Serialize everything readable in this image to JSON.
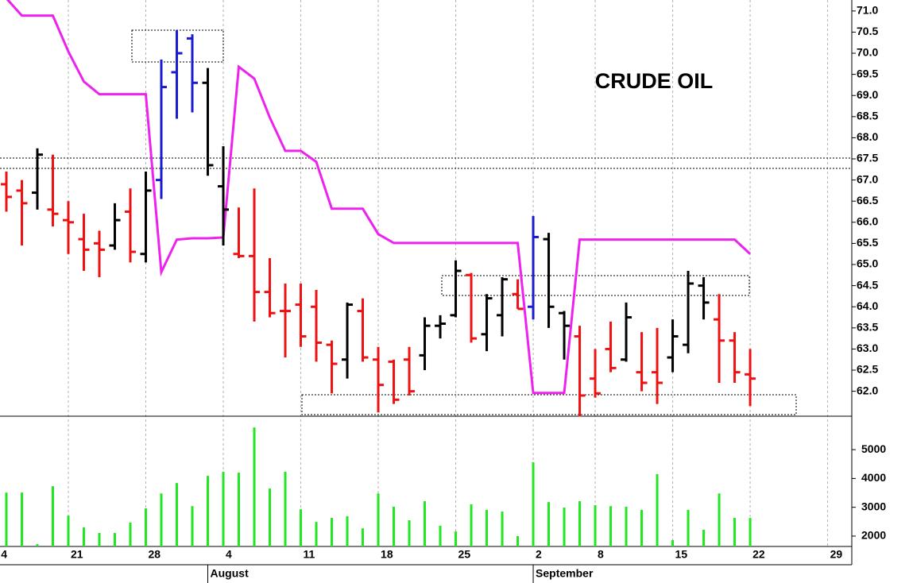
{
  "chart_data": {
    "type": "ohlc",
    "title": "CRUDE OIL",
    "open": [
      66.9,
      66.75,
      66.7,
      66.3,
      66.05,
      65.6,
      65.5,
      65.45,
      66.25,
      65.25,
      67.0,
      69.55,
      70.35,
      69.3,
      66.85,
      65.25,
      65.2,
      64.35,
      63.9,
      64.05,
      64.0,
      63.1,
      62.75,
      63.9,
      62.75,
      62.7,
      62.75,
      62.85,
      63.55,
      63.8,
      64.75,
      63.35,
      63.8,
      64.3,
      64.0,
      65.6,
      63.85,
      63.3,
      62.3,
      63.0,
      62.75,
      62.45,
      62.45,
      62.8,
      63.1,
      64.5,
      63.7,
      63.2,
      62.4
    ],
    "high": [
      67.2,
      67.0,
      67.75,
      67.6,
      66.5,
      66.2,
      65.8,
      66.45,
      66.8,
      67.2,
      69.85,
      70.55,
      70.45,
      69.65,
      67.8,
      66.35,
      66.8,
      65.15,
      64.55,
      64.55,
      64.4,
      63.2,
      64.1,
      64.2,
      63.05,
      62.75,
      63.05,
      63.75,
      63.8,
      65.1,
      64.8,
      64.3,
      64.7,
      64.65,
      66.15,
      65.75,
      63.9,
      63.55,
      63.0,
      63.65,
      64.1,
      63.4,
      63.5,
      63.7,
      64.85,
      64.7,
      64.3,
      63.4,
      63.0
    ],
    "low": [
      66.25,
      65.45,
      66.3,
      65.9,
      65.25,
      64.85,
      64.7,
      65.35,
      65.05,
      65.05,
      66.55,
      68.45,
      68.6,
      67.1,
      65.45,
      65.15,
      63.65,
      63.75,
      62.8,
      63.05,
      62.7,
      61.95,
      62.3,
      62.7,
      61.5,
      61.7,
      61.9,
      62.5,
      63.25,
      63.75,
      63.15,
      62.95,
      63.3,
      63.95,
      63.7,
      63.5,
      62.75,
      61.4,
      61.85,
      62.45,
      62.7,
      62.0,
      61.7,
      62.45,
      62.9,
      63.7,
      62.2,
      62.2,
      61.65
    ],
    "close": [
      66.6,
      66.45,
      67.6,
      66.2,
      66.0,
      65.35,
      65.35,
      66.05,
      65.3,
      66.75,
      69.2,
      70.0,
      69.3,
      67.35,
      66.3,
      65.2,
      64.35,
      63.85,
      63.9,
      63.3,
      63.15,
      62.65,
      64.05,
      62.8,
      62.15,
      61.8,
      62.0,
      63.55,
      63.6,
      64.85,
      63.25,
      64.2,
      64.65,
      63.95,
      65.65,
      64.0,
      63.55,
      61.9,
      61.95,
      62.55,
      63.75,
      62.2,
      62.2,
      63.3,
      64.55,
      64.1,
      63.2,
      62.45,
      62.3
    ],
    "colors": [
      "#ee1111",
      "#ee1111",
      "#000000",
      "#ee1111",
      "#ee1111",
      "#ee1111",
      "#ee1111",
      "#000000",
      "#ee1111",
      "#000000",
      "#1a1ad0",
      "#1a1ad0",
      "#1a1ad0",
      "#000000",
      "#000000",
      "#ee1111",
      "#ee1111",
      "#ee1111",
      "#ee1111",
      "#ee1111",
      "#ee1111",
      "#ee1111",
      "#000000",
      "#ee1111",
      "#ee1111",
      "#ee1111",
      "#ee1111",
      "#000000",
      "#000000",
      "#000000",
      "#ee1111",
      "#000000",
      "#000000",
      "#ee1111",
      "#1a1ad0",
      "#000000",
      "#000000",
      "#ee1111",
      "#ee1111",
      "#ee1111",
      "#000000",
      "#ee1111",
      "#ee1111",
      "#000000",
      "#000000",
      "#000000",
      "#ee1111",
      "#ee1111",
      "#ee1111"
    ],
    "overlay": {
      "color": "#ee22ee",
      "values": [
        71.3,
        70.89,
        70.89,
        70.89,
        70.04,
        69.33,
        69.03,
        69.03,
        69.03,
        69.03,
        64.82,
        65.59,
        65.62,
        65.62,
        65.64,
        69.68,
        69.4,
        68.48,
        67.69,
        67.69,
        67.43,
        66.32,
        66.32,
        66.32,
        65.72,
        65.51,
        65.51,
        65.51,
        65.51,
        65.51,
        65.51,
        65.51,
        65.51,
        65.51,
        61.96,
        61.96,
        61.96,
        65.59,
        65.59,
        65.59,
        65.59,
        65.59,
        65.59,
        65.59,
        65.59,
        65.59,
        65.59,
        65.59,
        65.25
      ]
    },
    "volume": {
      "color": "#22e622",
      "values": [
        3510,
        3510,
        1720,
        3730,
        2710,
        2300,
        2110,
        2110,
        2470,
        2960,
        3480,
        3840,
        3040,
        4090,
        4230,
        4200,
        5770,
        3650,
        4230,
        2930,
        2490,
        2630,
        2690,
        2270,
        3480,
        3020,
        2550,
        3210,
        2360,
        2160,
        3100,
        2910,
        2850,
        2000,
        4560,
        3180,
        2990,
        3210,
        3070,
        3040,
        3020,
        2910,
        4150,
        1860,
        2910,
        2220,
        3480,
        2630,
        2630
      ],
      "ylim": [
        1640,
        6160
      ],
      "yticks": [
        2000,
        3000,
        4000,
        5000
      ]
    },
    "ylim": [
      61.41,
      71.26
    ],
    "yticks": [
      {
        "value": 62,
        "label": "62.0"
      },
      62.5,
      {
        "value": 63,
        "label": "63.0"
      },
      63.5,
      {
        "value": 64,
        "label": "64.0"
      },
      64.5,
      {
        "value": 65,
        "label": "65.0"
      },
      65.5,
      {
        "value": 66,
        "label": "66.0"
      },
      66.5,
      {
        "value": 67,
        "label": "67.0"
      },
      67.5,
      {
        "value": 68,
        "label": "68.0"
      },
      68.5,
      {
        "value": 69,
        "label": "69.0"
      },
      69.5,
      {
        "value": 70,
        "label": "70.0"
      },
      70.5,
      {
        "value": 71,
        "label": "71.0"
      }
    ],
    "xlim": [
      -0.41,
      54.56
    ],
    "xticks": [
      {
        "value": -0.5,
        "label": "4"
      },
      {
        "value": 4,
        "label": "21"
      },
      {
        "value": 9,
        "label": "28"
      },
      {
        "value": 14,
        "label": "4"
      },
      {
        "value": 19,
        "label": "11"
      },
      {
        "value": 24,
        "label": "18"
      },
      {
        "value": 29,
        "label": "25"
      },
      {
        "value": 34,
        "label": "2"
      },
      {
        "value": 38,
        "label": "8"
      },
      {
        "value": 43,
        "label": "15"
      },
      {
        "value": 48,
        "label": "22"
      },
      {
        "value": 53,
        "label": "29"
      }
    ],
    "months": [
      {
        "value": 13,
        "label": "August"
      },
      {
        "value": 34,
        "label": "September"
      }
    ],
    "grid": true
  }
}
